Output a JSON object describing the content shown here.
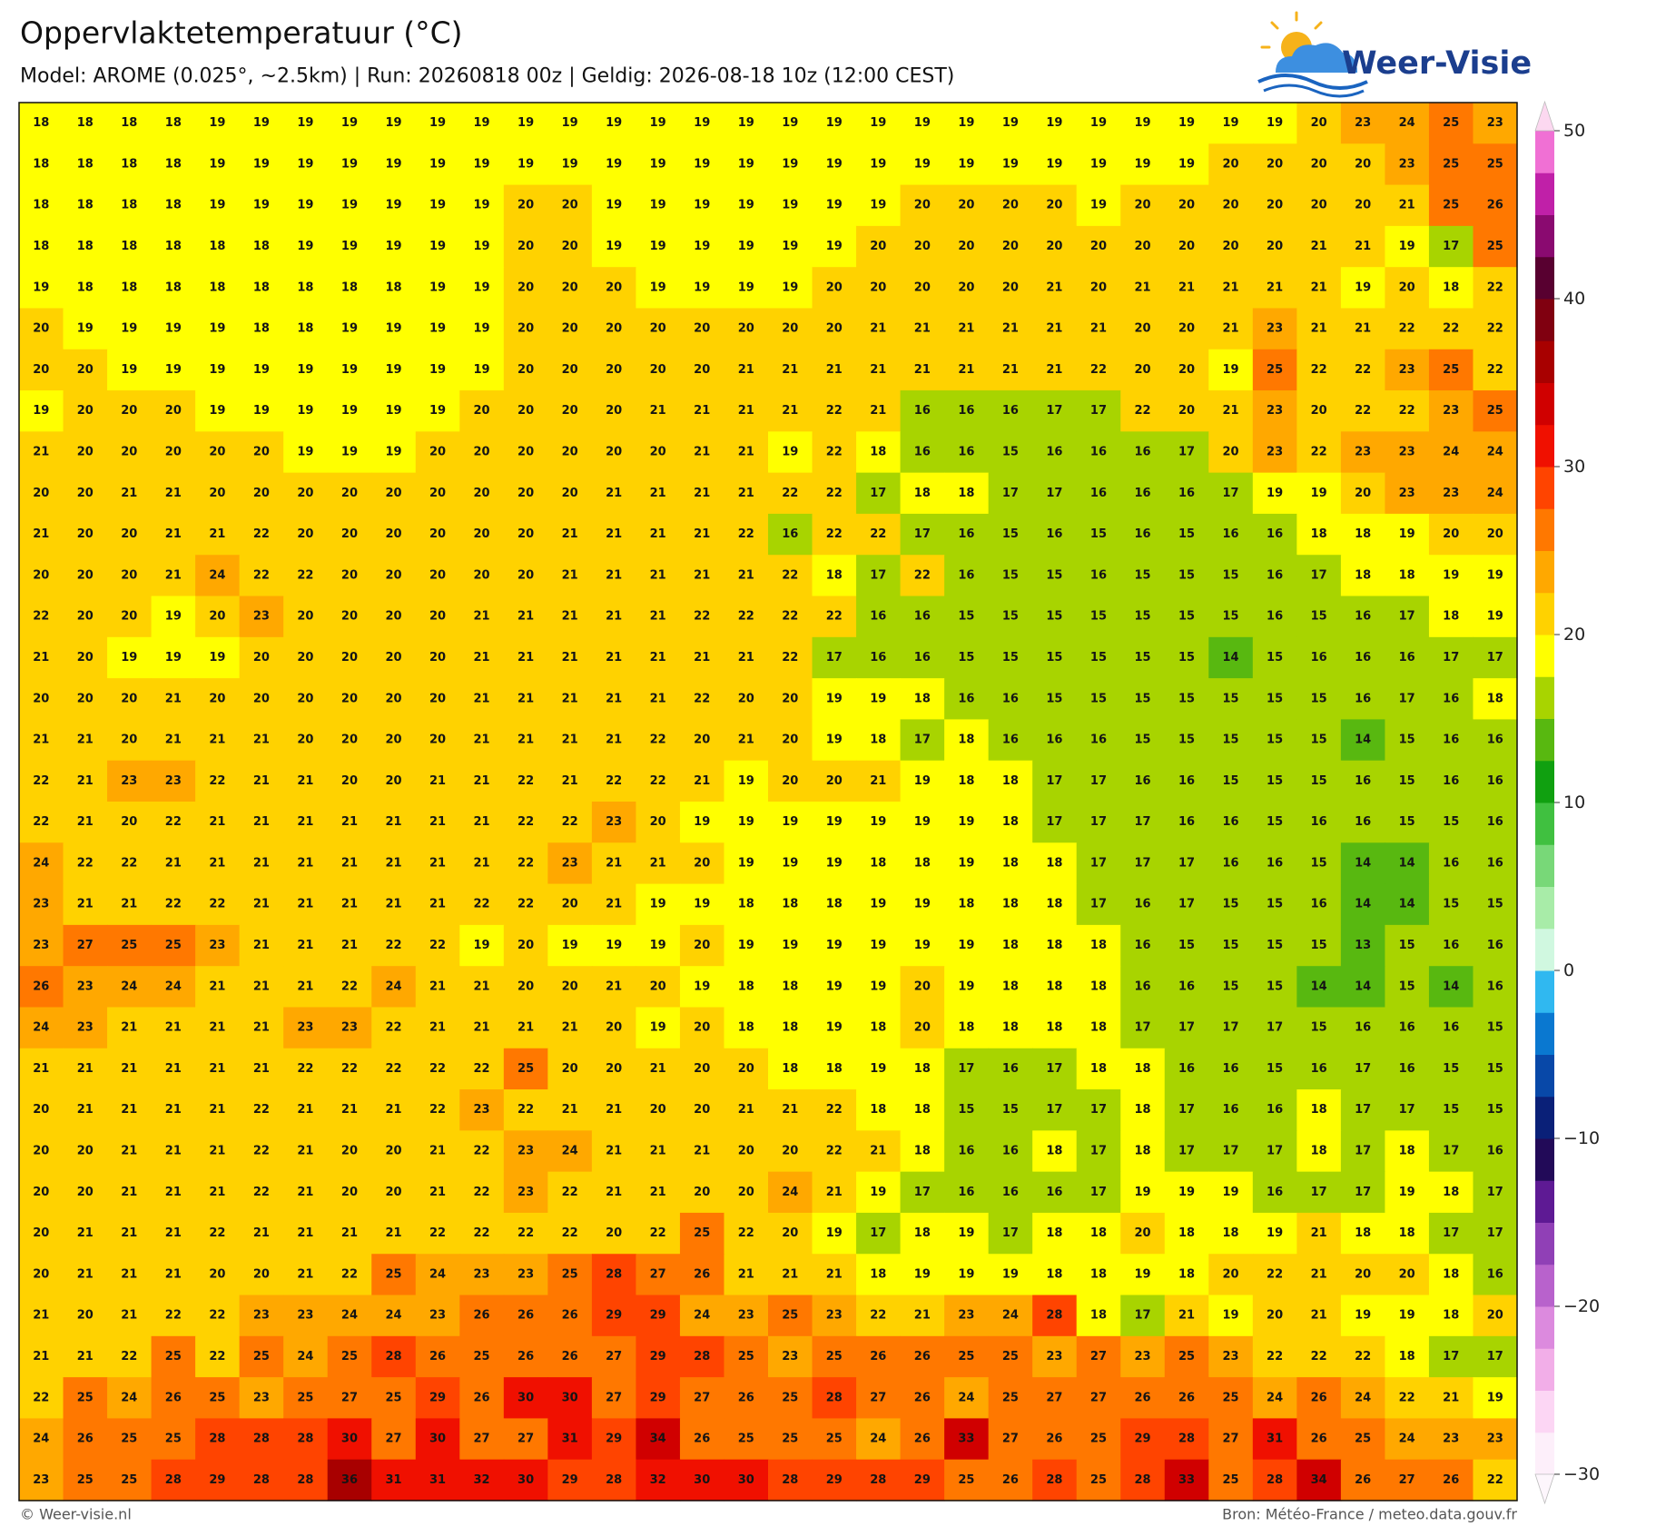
{
  "header": {
    "title": "Oppervlaktetemperatuur (°C)",
    "subtitle": "Model: AROME (0.025°, ~2.5km)  |  Run: 20260818 00z  |  Geldig: 2026-08-18 10z (12:00 CEST)",
    "logo": "Weer-Visie"
  },
  "colorbar": {
    "lim": [
      -30,
      50
    ],
    "ticks": [
      50,
      40,
      30,
      20,
      10,
      0,
      {
        "value": -10,
        "label": "−10"
      },
      {
        "value": -20,
        "label": "−20"
      },
      {
        "value": -30,
        "label": "−30"
      }
    ],
    "colors": [
      "#fdeffa",
      "#fcd6f4",
      "#f2aee8",
      "#dc8ade",
      "#b862cc",
      "#9040b6",
      "#5e1a94",
      "#220a58",
      "#0a2078",
      "#0848a8",
      "#0a78d0",
      "#30b8f0",
      "#d0f8e0",
      "#a8eca8",
      "#78d878",
      "#40c040",
      "#10a010",
      "#58b810",
      "#a8d400",
      "#ffff00",
      "#ffd200",
      "#ffa800",
      "#ff7800",
      "#ff4400",
      "#f01000",
      "#d00000",
      "#a80000",
      "#800010",
      "#580030",
      "#8a0a70",
      "#c020a8",
      "#f070d4"
    ],
    "over": "#fcd8f0",
    "under": "#fdf6fc"
  },
  "grid": {
    "rows": [
      [
        18,
        18,
        18,
        18,
        19,
        19,
        19,
        19,
        19,
        19,
        19,
        19,
        19,
        19,
        19,
        19,
        19,
        19,
        19,
        19,
        19,
        19,
        19,
        19,
        19,
        19,
        19,
        19,
        19,
        20,
        23,
        24,
        25,
        23
      ],
      [
        18,
        18,
        18,
        18,
        19,
        19,
        19,
        19,
        19,
        19,
        19,
        19,
        19,
        19,
        19,
        19,
        19,
        19,
        19,
        19,
        19,
        19,
        19,
        19,
        19,
        19,
        19,
        20,
        20,
        20,
        20,
        23,
        25,
        25
      ],
      [
        18,
        18,
        18,
        18,
        19,
        19,
        19,
        19,
        19,
        19,
        19,
        20,
        20,
        19,
        19,
        19,
        19,
        19,
        19,
        19,
        20,
        20,
        20,
        20,
        19,
        20,
        20,
        20,
        20,
        20,
        20,
        21,
        25,
        26
      ],
      [
        18,
        18,
        18,
        18,
        18,
        18,
        19,
        19,
        19,
        19,
        19,
        20,
        20,
        19,
        19,
        19,
        19,
        19,
        19,
        20,
        20,
        20,
        20,
        20,
        20,
        20,
        20,
        20,
        20,
        21,
        21,
        19,
        17,
        25
      ],
      [
        19,
        18,
        18,
        18,
        18,
        18,
        18,
        18,
        18,
        19,
        19,
        20,
        20,
        20,
        19,
        19,
        19,
        19,
        20,
        20,
        20,
        20,
        20,
        21,
        20,
        21,
        21,
        21,
        21,
        21,
        19,
        20,
        18,
        22
      ],
      [
        20,
        19,
        19,
        19,
        19,
        18,
        18,
        19,
        19,
        19,
        19,
        20,
        20,
        20,
        20,
        20,
        20,
        20,
        20,
        21,
        21,
        21,
        21,
        21,
        21,
        20,
        20,
        21,
        23,
        21,
        21,
        22,
        22,
        22
      ],
      [
        20,
        20,
        19,
        19,
        19,
        19,
        19,
        19,
        19,
        19,
        19,
        20,
        20,
        20,
        20,
        20,
        21,
        21,
        21,
        21,
        21,
        21,
        21,
        21,
        22,
        20,
        20,
        19,
        25,
        22,
        22,
        23,
        25,
        22
      ],
      [
        19,
        20,
        20,
        20,
        19,
        19,
        19,
        19,
        19,
        19,
        20,
        20,
        20,
        20,
        21,
        21,
        21,
        21,
        22,
        21,
        16,
        16,
        16,
        17,
        17,
        22,
        20,
        21,
        23,
        20,
        22,
        22,
        23,
        25
      ],
      [
        21,
        20,
        20,
        20,
        20,
        20,
        19,
        19,
        19,
        20,
        20,
        20,
        20,
        20,
        20,
        21,
        21,
        19,
        22,
        18,
        16,
        16,
        15,
        16,
        16,
        16,
        17,
        20,
        23,
        22,
        23,
        23,
        24,
        24
      ],
      [
        20,
        20,
        21,
        21,
        20,
        20,
        20,
        20,
        20,
        20,
        20,
        20,
        20,
        21,
        21,
        21,
        21,
        22,
        22,
        17,
        18,
        18,
        17,
        17,
        16,
        16,
        16,
        17,
        19,
        19,
        20,
        23,
        23,
        24
      ],
      [
        21,
        20,
        20,
        21,
        21,
        22,
        20,
        20,
        20,
        20,
        20,
        20,
        21,
        21,
        21,
        21,
        22,
        16,
        22,
        22,
        17,
        16,
        15,
        16,
        15,
        16,
        15,
        16,
        16,
        18,
        18,
        19,
        20,
        20
      ],
      [
        20,
        20,
        20,
        21,
        24,
        22,
        22,
        20,
        20,
        20,
        20,
        20,
        21,
        21,
        21,
        21,
        21,
        22,
        18,
        17,
        22,
        16,
        15,
        15,
        16,
        15,
        15,
        15,
        16,
        17,
        18,
        18,
        19,
        19
      ],
      [
        22,
        20,
        20,
        19,
        20,
        23,
        20,
        20,
        20,
        20,
        21,
        21,
        21,
        21,
        21,
        22,
        22,
        22,
        22,
        16,
        16,
        15,
        15,
        15,
        15,
        15,
        15,
        15,
        16,
        15,
        16,
        17,
        18,
        19
      ],
      [
        21,
        20,
        19,
        19,
        19,
        20,
        20,
        20,
        20,
        20,
        21,
        21,
        21,
        21,
        21,
        21,
        21,
        22,
        17,
        16,
        16,
        15,
        15,
        15,
        15,
        15,
        15,
        14,
        15,
        16,
        16,
        16,
        17,
        17
      ],
      [
        20,
        20,
        20,
        21,
        20,
        20,
        20,
        20,
        20,
        20,
        21,
        21,
        21,
        21,
        21,
        22,
        20,
        20,
        19,
        19,
        18,
        16,
        16,
        15,
        15,
        15,
        15,
        15,
        15,
        15,
        16,
        17,
        16,
        18
      ],
      [
        21,
        21,
        20,
        21,
        21,
        21,
        20,
        20,
        20,
        20,
        21,
        21,
        21,
        21,
        22,
        20,
        21,
        20,
        19,
        18,
        17,
        18,
        16,
        16,
        16,
        15,
        15,
        15,
        15,
        15,
        14,
        15,
        16,
        16
      ],
      [
        22,
        21,
        23,
        23,
        22,
        21,
        21,
        20,
        20,
        21,
        21,
        22,
        21,
        22,
        22,
        21,
        19,
        20,
        20,
        21,
        19,
        18,
        18,
        17,
        17,
        16,
        16,
        15,
        15,
        15,
        16,
        15,
        16,
        16
      ],
      [
        22,
        21,
        20,
        22,
        21,
        21,
        21,
        21,
        21,
        21,
        21,
        22,
        22,
        23,
        20,
        19,
        19,
        19,
        19,
        19,
        19,
        19,
        18,
        17,
        17,
        17,
        16,
        16,
        15,
        16,
        16,
        15,
        15,
        16
      ],
      [
        24,
        22,
        22,
        21,
        21,
        21,
        21,
        21,
        21,
        21,
        21,
        22,
        23,
        21,
        21,
        20,
        19,
        19,
        19,
        18,
        18,
        19,
        18,
        18,
        17,
        17,
        17,
        16,
        16,
        15,
        14,
        14,
        16,
        16
      ],
      [
        23,
        21,
        21,
        22,
        22,
        21,
        21,
        21,
        21,
        21,
        22,
        22,
        20,
        21,
        19,
        19,
        18,
        18,
        18,
        19,
        19,
        18,
        18,
        18,
        17,
        16,
        17,
        15,
        15,
        16,
        14,
        14,
        15,
        15
      ],
      [
        23,
        27,
        25,
        25,
        23,
        21,
        21,
        21,
        22,
        22,
        19,
        20,
        19,
        19,
        19,
        20,
        19,
        19,
        19,
        19,
        19,
        19,
        18,
        18,
        18,
        16,
        15,
        15,
        15,
        15,
        13,
        15,
        16,
        16
      ],
      [
        26,
        23,
        24,
        24,
        21,
        21,
        21,
        22,
        24,
        21,
        21,
        20,
        20,
        21,
        20,
        19,
        18,
        18,
        19,
        19,
        20,
        19,
        18,
        18,
        18,
        16,
        16,
        15,
        15,
        14,
        14,
        15,
        14,
        16
      ],
      [
        24,
        23,
        21,
        21,
        21,
        21,
        23,
        23,
        22,
        21,
        21,
        21,
        21,
        20,
        19,
        20,
        18,
        18,
        19,
        18,
        20,
        18,
        18,
        18,
        18,
        17,
        17,
        17,
        17,
        15,
        16,
        16,
        16,
        15
      ],
      [
        21,
        21,
        21,
        21,
        21,
        21,
        22,
        22,
        22,
        22,
        22,
        25,
        20,
        20,
        21,
        20,
        20,
        18,
        18,
        19,
        18,
        17,
        16,
        17,
        18,
        18,
        16,
        16,
        15,
        16,
        17,
        16,
        15,
        15
      ],
      [
        20,
        21,
        21,
        21,
        21,
        22,
        21,
        21,
        21,
        22,
        23,
        22,
        21,
        21,
        20,
        20,
        21,
        21,
        22,
        18,
        18,
        15,
        15,
        17,
        17,
        18,
        17,
        16,
        16,
        18,
        17,
        17,
        15,
        15
      ],
      [
        20,
        20,
        21,
        21,
        21,
        22,
        21,
        20,
        20,
        21,
        22,
        23,
        24,
        21,
        21,
        21,
        20,
        20,
        22,
        21,
        18,
        16,
        16,
        18,
        17,
        18,
        17,
        17,
        17,
        18,
        17,
        18,
        17,
        16
      ],
      [
        20,
        20,
        21,
        21,
        21,
        22,
        21,
        20,
        20,
        21,
        22,
        23,
        22,
        21,
        21,
        20,
        20,
        24,
        21,
        19,
        17,
        16,
        16,
        16,
        17,
        19,
        19,
        19,
        16,
        17,
        17,
        19,
        18,
        17
      ],
      [
        20,
        21,
        21,
        21,
        22,
        21,
        21,
        21,
        21,
        22,
        22,
        22,
        22,
        20,
        22,
        25,
        22,
        20,
        19,
        17,
        18,
        19,
        17,
        18,
        18,
        20,
        18,
        18,
        19,
        21,
        18,
        18,
        17,
        17
      ],
      [
        20,
        21,
        21,
        21,
        20,
        20,
        21,
        22,
        25,
        24,
        23,
        23,
        25,
        28,
        27,
        26,
        21,
        21,
        21,
        18,
        19,
        19,
        19,
        18,
        18,
        19,
        18,
        20,
        22,
        21,
        20,
        20,
        18,
        16
      ],
      [
        21,
        20,
        21,
        22,
        22,
        23,
        23,
        24,
        24,
        23,
        26,
        26,
        26,
        29,
        29,
        24,
        23,
        25,
        23,
        22,
        21,
        23,
        24,
        28,
        18,
        17,
        21,
        19,
        20,
        21,
        19,
        19,
        18,
        20
      ],
      [
        21,
        21,
        22,
        25,
        22,
        25,
        24,
        25,
        28,
        26,
        25,
        26,
        26,
        27,
        29,
        28,
        25,
        23,
        25,
        26,
        26,
        25,
        25,
        23,
        27,
        23,
        25,
        23,
        22,
        22,
        22,
        18,
        17,
        17
      ],
      [
        22,
        25,
        24,
        26,
        25,
        23,
        25,
        27,
        25,
        29,
        26,
        30,
        30,
        27,
        29,
        27,
        26,
        25,
        28,
        27,
        26,
        24,
        25,
        27,
        27,
        26,
        26,
        25,
        24,
        26,
        24,
        22,
        21,
        19
      ],
      [
        24,
        26,
        25,
        25,
        28,
        28,
        28,
        30,
        27,
        30,
        27,
        27,
        31,
        29,
        34,
        26,
        25,
        25,
        25,
        24,
        26,
        33,
        27,
        26,
        25,
        29,
        28,
        27,
        31,
        26,
        25,
        24,
        23,
        23
      ],
      [
        23,
        25,
        25,
        28,
        29,
        28,
        28,
        36,
        31,
        31,
        32,
        30,
        29,
        28,
        32,
        30,
        30,
        28,
        29,
        28,
        29,
        25,
        26,
        28,
        25,
        28,
        33,
        25,
        28,
        34,
        26,
        27,
        26,
        22
      ]
    ]
  },
  "footer": {
    "left": "© Weer-visie.nl",
    "right": "Bron: Météo-France / meteo.data.gouv.fr"
  }
}
